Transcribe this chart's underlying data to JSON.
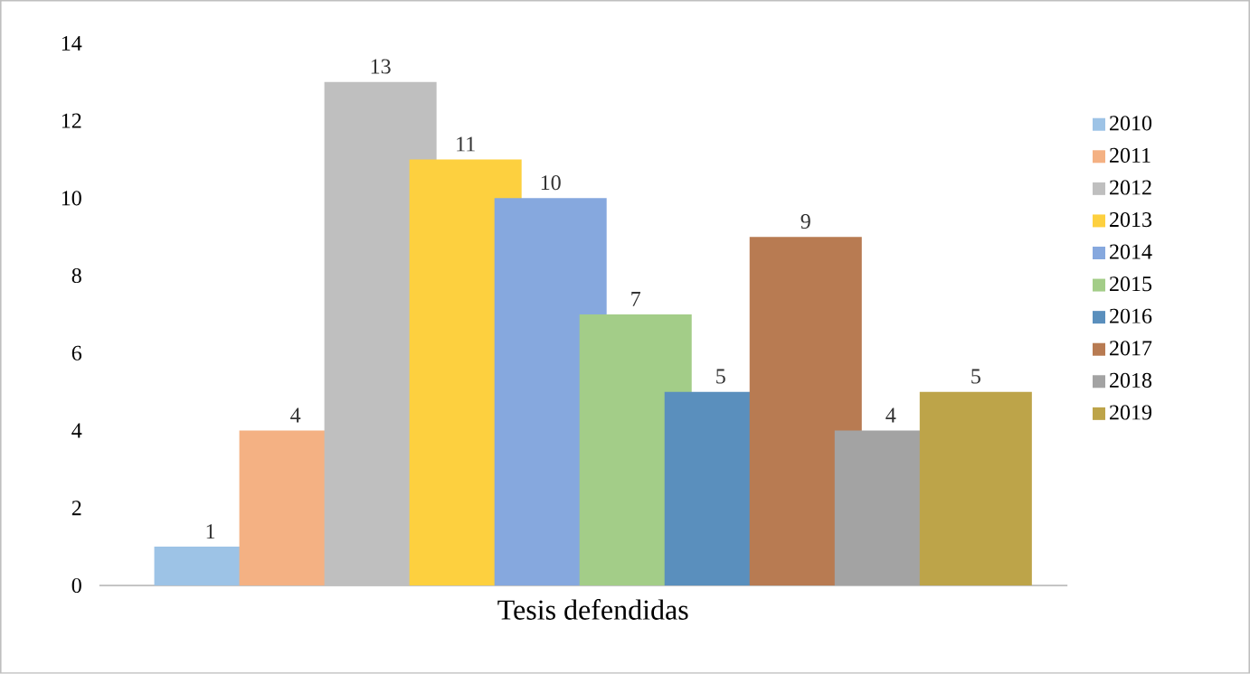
{
  "chart_data": {
    "type": "bar",
    "categories": [
      "Tesis defendidas"
    ],
    "series": [
      {
        "name": "2010",
        "color": "#9dc3e6",
        "values": [
          1
        ]
      },
      {
        "name": "2011",
        "color": "#f4b183",
        "values": [
          4
        ]
      },
      {
        "name": "2012",
        "color": "#bfbfbf",
        "values": [
          13
        ]
      },
      {
        "name": "2013",
        "color": "#fdd03f",
        "values": [
          11
        ]
      },
      {
        "name": "2014",
        "color": "#86a8de",
        "values": [
          10
        ]
      },
      {
        "name": "2015",
        "color": "#a3cd88",
        "values": [
          7
        ]
      },
      {
        "name": "2016",
        "color": "#5a8fbd",
        "values": [
          5
        ]
      },
      {
        "name": "2017",
        "color": "#b87b52",
        "values": [
          9
        ]
      },
      {
        "name": "2018",
        "color": "#a3a3a3",
        "values": [
          4
        ]
      },
      {
        "name": "2019",
        "color": "#bda449",
        "values": [
          5
        ]
      }
    ],
    "ylim": [
      0,
      14
    ],
    "yticks": [
      0,
      2,
      4,
      6,
      8,
      10,
      12,
      14
    ],
    "data_labels": true,
    "legend": "right",
    "grid": false
  }
}
